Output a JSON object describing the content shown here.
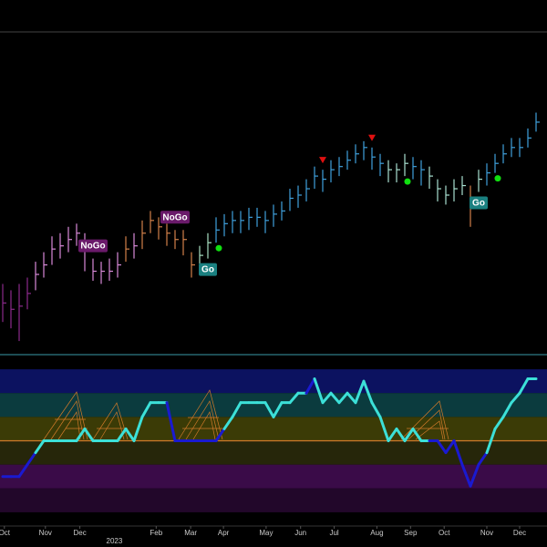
{
  "chart_data": {
    "type": "ohlc",
    "ylim": [
      0,
      100
    ],
    "high": [
      22,
      20,
      22,
      24,
      29,
      32,
      37,
      38,
      40,
      41,
      38,
      30,
      29,
      30,
      32,
      37,
      38,
      42,
      45,
      43,
      41,
      39,
      39,
      32,
      34,
      38,
      43,
      44,
      45,
      45,
      46,
      46,
      45,
      47,
      48,
      52,
      53,
      55,
      59,
      58,
      61,
      62,
      64,
      66,
      67,
      65,
      63,
      61,
      60,
      63,
      62,
      61,
      59,
      55,
      53,
      55,
      56,
      53,
      58,
      60,
      63,
      66,
      68,
      68,
      71,
      76
    ],
    "low": [
      10,
      8,
      4,
      14,
      20,
      24,
      28,
      30,
      32,
      34,
      26,
      23,
      22,
      23,
      24,
      29,
      30,
      33,
      38,
      36,
      34,
      33,
      31,
      24,
      27,
      30,
      35,
      37,
      38,
      38,
      39,
      40,
      38,
      40,
      42,
      45,
      46,
      48,
      52,
      51,
      54,
      56,
      58,
      60,
      61,
      58,
      56,
      54,
      54,
      56,
      55,
      53,
      52,
      48,
      47,
      48,
      50,
      40,
      51,
      53,
      57,
      60,
      62,
      62,
      65,
      70
    ],
    "close": [
      16,
      14,
      15,
      19,
      25,
      28,
      33,
      34,
      36,
      38,
      33,
      26,
      26,
      26,
      28,
      33,
      34,
      38,
      42,
      40,
      38,
      36,
      36,
      28,
      31,
      35,
      39,
      41,
      42,
      42,
      43,
      43,
      42,
      44,
      45,
      49,
      50,
      52,
      56,
      55,
      58,
      59,
      61,
      63,
      65,
      62,
      60,
      58,
      58,
      60,
      59,
      58,
      56,
      52,
      50,
      52,
      53,
      48,
      55,
      57,
      60,
      63,
      65,
      65,
      68,
      73
    ],
    "bar_colors": [
      "#8b2a8b",
      "#8b2a8b",
      "#8b2a8b",
      "#8b2a8b",
      "#d88ad8",
      "#d88ad8",
      "#d88ad8",
      "#d88ad8",
      "#d88ad8",
      "#d88ad8",
      "#d88ad8",
      "#d88ad8",
      "#d88ad8",
      "#d88ad8",
      "#d88ad8",
      "#d2804a",
      "#d88ad8",
      "#d2804a",
      "#d2804a",
      "#d2804a",
      "#d2804a",
      "#d2804a",
      "#d2804a",
      "#d2804a",
      "#a8e0c0",
      "#a8e0c0",
      "#3fa0dc",
      "#3fa0dc",
      "#3fa0dc",
      "#3fa0dc",
      "#3fa0dc",
      "#3fa0dc",
      "#3fa0dc",
      "#3fa0dc",
      "#3fa0dc",
      "#3fa0dc",
      "#3fa0dc",
      "#3fa0dc",
      "#3fa0dc",
      "#3fa0dc",
      "#3fa0dc",
      "#3fa0dc",
      "#3fa0dc",
      "#3fa0dc",
      "#3fa0dc",
      "#3fa0dc",
      "#3fa0dc",
      "#a8e0d0",
      "#a8e0d0",
      "#a8e0d0",
      "#3fa0dc",
      "#3fa0dc",
      "#a8e0d0",
      "#a8e0d0",
      "#a8e0d0",
      "#a8e0d0",
      "#a8e0d0",
      "#d2804a",
      "#a8e0d0",
      "#3fa0dc",
      "#3fa0dc",
      "#3fa0dc",
      "#3fa0dc",
      "#3fa0dc",
      "#3fa0dc",
      "#3fa0dc"
    ],
    "annotations": [
      {
        "text": "NoGo",
        "bar": 11,
        "color": "#6a1a6a"
      },
      {
        "text": "NoGo",
        "bar": 21,
        "color": "#6a1a6a"
      },
      {
        "text": "Go",
        "bar": 25,
        "color": "#1a8080"
      },
      {
        "text": "Go",
        "bar": 58,
        "color": "#1a8080"
      }
    ],
    "markers": [
      {
        "bar": 39,
        "shape": "triangle",
        "color": "#e01010"
      },
      {
        "bar": 45,
        "shape": "triangle",
        "color": "#e01010"
      },
      {
        "bar": 26,
        "shape": "dot",
        "color": "#10e010"
      },
      {
        "bar": 49,
        "shape": "dot",
        "color": "#10e010"
      },
      {
        "bar": 60,
        "shape": "dot",
        "color": "#10e010"
      }
    ],
    "oscillator": {
      "ylim": [
        -3.5,
        3.5
      ],
      "values": [
        -1.5,
        -1.5,
        -1.5,
        -1,
        -0.5,
        0,
        0,
        0,
        0,
        0,
        0.5,
        0,
        0,
        0,
        0,
        0.5,
        0,
        1,
        1.6,
        1.6,
        1.6,
        0,
        0,
        0,
        0,
        0,
        0,
        0.5,
        1,
        1.6,
        1.6,
        1.6,
        1.6,
        1,
        1.6,
        1.6,
        2,
        2,
        2.6,
        1.6,
        2,
        1.6,
        2,
        1.6,
        2.5,
        1.6,
        1,
        0,
        0.5,
        0,
        0.5,
        0,
        0,
        0,
        -0.5,
        0,
        -1,
        -1.9,
        -1,
        -0.5,
        0.5,
        1,
        1.6,
        2,
        2.6,
        2.6
      ],
      "colors": [
        "#1a1ad0",
        "#1a1ad0",
        "#1a1ad0",
        "#1a1ad0",
        "#1a1ad0",
        "#3ce0d8",
        "#3ce0d8",
        "#3ce0d8",
        "#3ce0d8",
        "#3ce0d8",
        "#3ce0d8",
        "#3ce0d8",
        "#3ce0d8",
        "#3ce0d8",
        "#3ce0d8",
        "#3ce0d8",
        "#3ce0d8",
        "#3ce0d8",
        "#3ce0d8",
        "#3ce0d8",
        "#3ce0d8",
        "#1a1ad0",
        "#1a1ad0",
        "#1a1ad0",
        "#1a1ad0",
        "#1a1ad0",
        "#1a1ad0",
        "#1a1ad0",
        "#3ce0d8",
        "#3ce0d8",
        "#3ce0d8",
        "#3ce0d8",
        "#3ce0d8",
        "#3ce0d8",
        "#3ce0d8",
        "#3ce0d8",
        "#3ce0d8",
        "#3ce0d8",
        "#1a1ad0",
        "#3ce0d8",
        "#3ce0d8",
        "#3ce0d8",
        "#3ce0d8",
        "#3ce0d8",
        "#3ce0d8",
        "#3ce0d8",
        "#3ce0d8",
        "#3ce0d8",
        "#3ce0d8",
        "#3ce0d8",
        "#3ce0d8",
        "#3ce0d8",
        "#3ce0d8",
        "#1a1ad0",
        "#1a1ad0",
        "#1a1ad0",
        "#1a1ad0",
        "#1a1ad0",
        "#1a1ad0",
        "#1a1ad0",
        "#3ce0d8",
        "#3ce0d8",
        "#3ce0d8",
        "#3ce0d8",
        "#3ce0d8",
        "#3ce0d8"
      ],
      "bands": [
        {
          "from": 2,
          "to": 3,
          "color": "#0c1260"
        },
        {
          "from": 1,
          "to": 2,
          "color": "#0b3b3e"
        },
        {
          "from": 0,
          "to": 1,
          "color": "#3b3b06"
        },
        {
          "from": -1,
          "to": 0,
          "color": "#26260a"
        },
        {
          "from": -2,
          "to": -1,
          "color": "#3a0b48"
        },
        {
          "from": -3,
          "to": -2,
          "color": "#22072a"
        }
      ],
      "zero_color": "#d07a2a"
    },
    "xticks": [
      {
        "value": 0.2,
        "label": "Oct"
      },
      {
        "value": 5.2,
        "label": "Nov"
      },
      {
        "value": 9.4,
        "label": "Dec"
      },
      {
        "value": 18.7,
        "label": "Feb"
      },
      {
        "value": 22.9,
        "label": "Mar"
      },
      {
        "value": 26.9,
        "label": "Apr"
      },
      {
        "value": 32.1,
        "label": "May"
      },
      {
        "value": 36.3,
        "label": "Jun"
      },
      {
        "value": 40.4,
        "label": "Jul"
      },
      {
        "value": 45.6,
        "label": "Aug"
      },
      {
        "value": 49.7,
        "label": "Sep"
      },
      {
        "value": 53.8,
        "label": "Oct"
      },
      {
        "value": 59,
        "label": "Nov"
      },
      {
        "value": 63,
        "label": "Dec"
      }
    ],
    "year_tick": {
      "value": 13.6,
      "label": "2023"
    }
  }
}
